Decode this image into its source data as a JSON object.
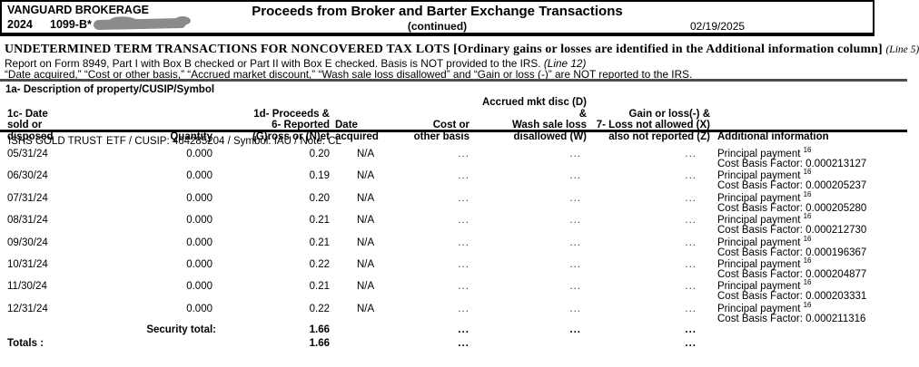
{
  "header": {
    "brand": "VANGUARD BROKERAGE",
    "tax_year": "2024",
    "form_name": "1099-B*",
    "title": "Proceeds from Broker and Barter Exchange Transactions",
    "continued": "(continued)",
    "statement_date": "02/19/2025"
  },
  "section": {
    "heading": "UNDETERMINED TERM TRANSACTIONS FOR NONCOVERED TAX LOTS [Ordinary gains or losses are identified in the Additional information column] ",
    "heading_ref": "(Line 5)",
    "instruction_1": "Report on Form 8949, Part I with Box B checked or Part II with Box E checked. Basis is NOT provided to the IRS. ",
    "instruction_1_ref": "(Line 12)",
    "instruction_2": "“Date acquired,” “Cost or other basis,” “Accrued market discount,” “Wash sale loss disallowed” and “Gain or loss (-)” are NOT reported to the IRS.",
    "description_label": "1a- Description of property/CUSIP/Symbol"
  },
  "table": {
    "columns": {
      "date_sold": [
        "1c- Date",
        "sold or",
        "disposed"
      ],
      "quantity": "Quantity",
      "proceeds": [
        "1d- Proceeds &",
        "6- Reported",
        "(G)ross or (N)et"
      ],
      "date_acquired": [
        "Date",
        "acquired"
      ],
      "cost_basis": [
        "Cost or",
        "other basis"
      ],
      "accrued_wash": [
        "Accrued mkt disc (D) &",
        "Wash sale loss",
        "disallowed (W)"
      ],
      "gain_loss": [
        "Gain or loss(-) &",
        "7- Loss not allowed (X)",
        "also not reported (Z)"
      ],
      "additional_info": "Additional information"
    },
    "security": {
      "name": "ISHS GOLD TRUST",
      "details": "ETF / CUSIP: 464285204 / Symbol: IAU / Note: CL"
    },
    "rows": [
      {
        "date_sold": "05/31/24",
        "quantity": "0.000",
        "proceeds": "0.20",
        "date_acquired": "N/A",
        "cost_basis": "...",
        "accrued_wash": "...",
        "gain_loss": "...",
        "info_line1": "Principal payment ",
        "info_sup": "16",
        "info_line2": "Cost Basis Factor: 0.000213127"
      },
      {
        "date_sold": "06/30/24",
        "quantity": "0.000",
        "proceeds": "0.19",
        "date_acquired": "N/A",
        "cost_basis": "...",
        "accrued_wash": "...",
        "gain_loss": "...",
        "info_line1": "Principal payment ",
        "info_sup": "16",
        "info_line2": "Cost Basis Factor: 0.000205237"
      },
      {
        "date_sold": "07/31/24",
        "quantity": "0.000",
        "proceeds": "0.20",
        "date_acquired": "N/A",
        "cost_basis": "...",
        "accrued_wash": "...",
        "gain_loss": "...",
        "info_line1": "Principal payment ",
        "info_sup": "16",
        "info_line2": "Cost Basis Factor: 0.000205280"
      },
      {
        "date_sold": "08/31/24",
        "quantity": "0.000",
        "proceeds": "0.21",
        "date_acquired": "N/A",
        "cost_basis": "...",
        "accrued_wash": "...",
        "gain_loss": "...",
        "info_line1": "Principal payment ",
        "info_sup": "16",
        "info_line2": "Cost Basis Factor: 0.000212730"
      },
      {
        "date_sold": "09/30/24",
        "quantity": "0.000",
        "proceeds": "0.21",
        "date_acquired": "N/A",
        "cost_basis": "...",
        "accrued_wash": "...",
        "gain_loss": "...",
        "info_line1": "Principal payment ",
        "info_sup": "16",
        "info_line2": "Cost Basis Factor: 0.000196367"
      },
      {
        "date_sold": "10/31/24",
        "quantity": "0.000",
        "proceeds": "0.22",
        "date_acquired": "N/A",
        "cost_basis": "...",
        "accrued_wash": "...",
        "gain_loss": "...",
        "info_line1": "Principal payment ",
        "info_sup": "16",
        "info_line2": "Cost Basis Factor: 0.000204877"
      },
      {
        "date_sold": "11/30/24",
        "quantity": "0.000",
        "proceeds": "0.21",
        "date_acquired": "N/A",
        "cost_basis": "...",
        "accrued_wash": "...",
        "gain_loss": "...",
        "info_line1": "Principal payment ",
        "info_sup": "16",
        "info_line2": "Cost Basis Factor: 0.000203331"
      },
      {
        "date_sold": "12/31/24",
        "quantity": "0.000",
        "proceeds": "0.22",
        "date_acquired": "N/A",
        "cost_basis": "...",
        "accrued_wash": "...",
        "gain_loss": "...",
        "info_line1": "Principal payment ",
        "info_sup": "16",
        "info_line2": "Cost Basis Factor: 0.000211316"
      }
    ],
    "security_total": {
      "label": "Security total:",
      "proceeds": "1.66",
      "cost_basis": "...",
      "accrued_wash": "...",
      "gain_loss": "..."
    },
    "totals": {
      "label": "Totals :",
      "proceeds": "1.66",
      "cost_basis": "...",
      "gain_loss": "..."
    }
  }
}
